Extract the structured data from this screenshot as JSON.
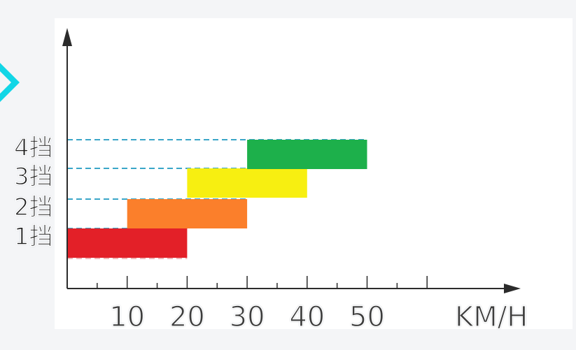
{
  "chart_data": {
    "type": "bar",
    "orientation": "horizontal-range",
    "categories": [
      "1挡",
      "2挡",
      "3挡",
      "4挡"
    ],
    "ranges": [
      [
        0,
        20
      ],
      [
        10,
        30
      ],
      [
        20,
        40
      ],
      [
        30,
        50
      ]
    ],
    "colors": [
      "#e32028",
      "#fb7f2b",
      "#f7ef11",
      "#1db04b"
    ],
    "x_ticks": [
      "10",
      "20",
      "30",
      "40",
      "50"
    ],
    "x_tick_values": [
      10,
      20,
      30,
      40,
      50
    ],
    "xlabel": "KM/H",
    "xlim": [
      0,
      60
    ],
    "grid": false
  }
}
